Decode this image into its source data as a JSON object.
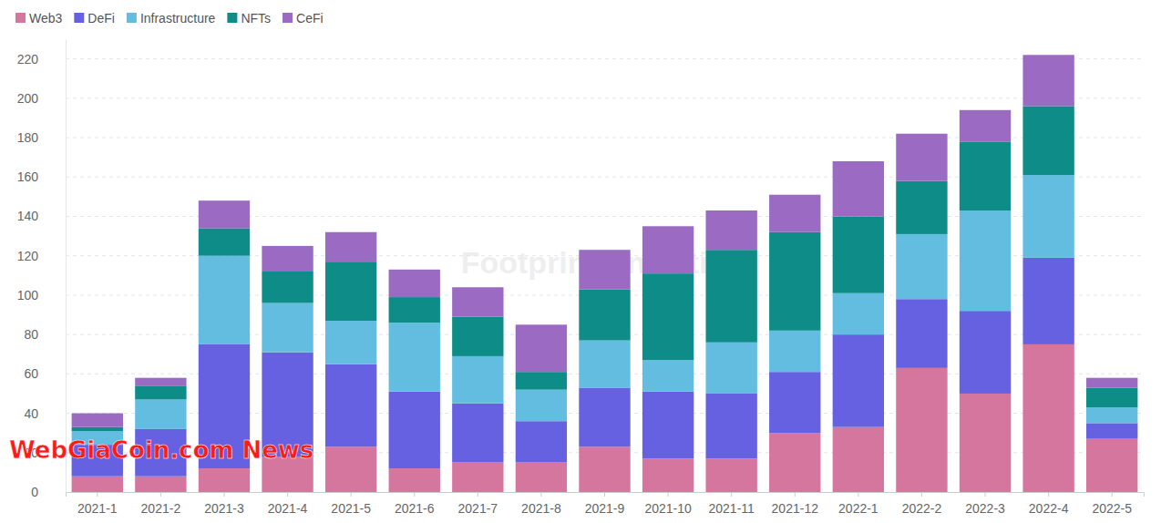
{
  "chart_data": {
    "type": "bar",
    "stacked": true,
    "grid": true,
    "legend": "top-left",
    "categories": [
      "2021-1",
      "2021-2",
      "2021-3",
      "2021-4",
      "2021-5",
      "2021-6",
      "2021-7",
      "2021-8",
      "2021-9",
      "2021-10",
      "2021-11",
      "2021-12",
      "2022-1",
      "2022-2",
      "2022-3",
      "2022-4",
      "2022-5"
    ],
    "series": [
      {
        "name": "Web3",
        "color": "#d4769e",
        "values": [
          8,
          8,
          12,
          18,
          23,
          12,
          15,
          15,
          23,
          17,
          17,
          30,
          33,
          63,
          50,
          75,
          27
        ]
      },
      {
        "name": "DeFi",
        "color": "#6661e0",
        "values": [
          16,
          24,
          63,
          53,
          42,
          39,
          30,
          21,
          30,
          34,
          33,
          31,
          47,
          35,
          42,
          44,
          8
        ]
      },
      {
        "name": "Infrastructure",
        "color": "#62bde0",
        "values": [
          7,
          15,
          45,
          25,
          22,
          35,
          24,
          16,
          24,
          16,
          26,
          21,
          21,
          33,
          51,
          42,
          8
        ]
      },
      {
        "name": "NFTs",
        "color": "#0e8c87",
        "values": [
          2,
          7,
          14,
          16,
          30,
          13,
          20,
          9,
          26,
          44,
          47,
          50,
          39,
          27,
          35,
          35,
          10
        ]
      },
      {
        "name": "CeFi",
        "color": "#9b6bc4",
        "values": [
          7,
          4,
          14,
          13,
          15,
          14,
          15,
          24,
          20,
          24,
          20,
          19,
          28,
          24,
          16,
          26,
          5
        ]
      }
    ],
    "ylim": [
      0,
      230
    ],
    "yticks": [
      0,
      20,
      40,
      60,
      80,
      100,
      120,
      140,
      160,
      180,
      200,
      220
    ],
    "annotations": [
      "Footprint Analytics",
      "WebGiaCoin.com News"
    ]
  }
}
